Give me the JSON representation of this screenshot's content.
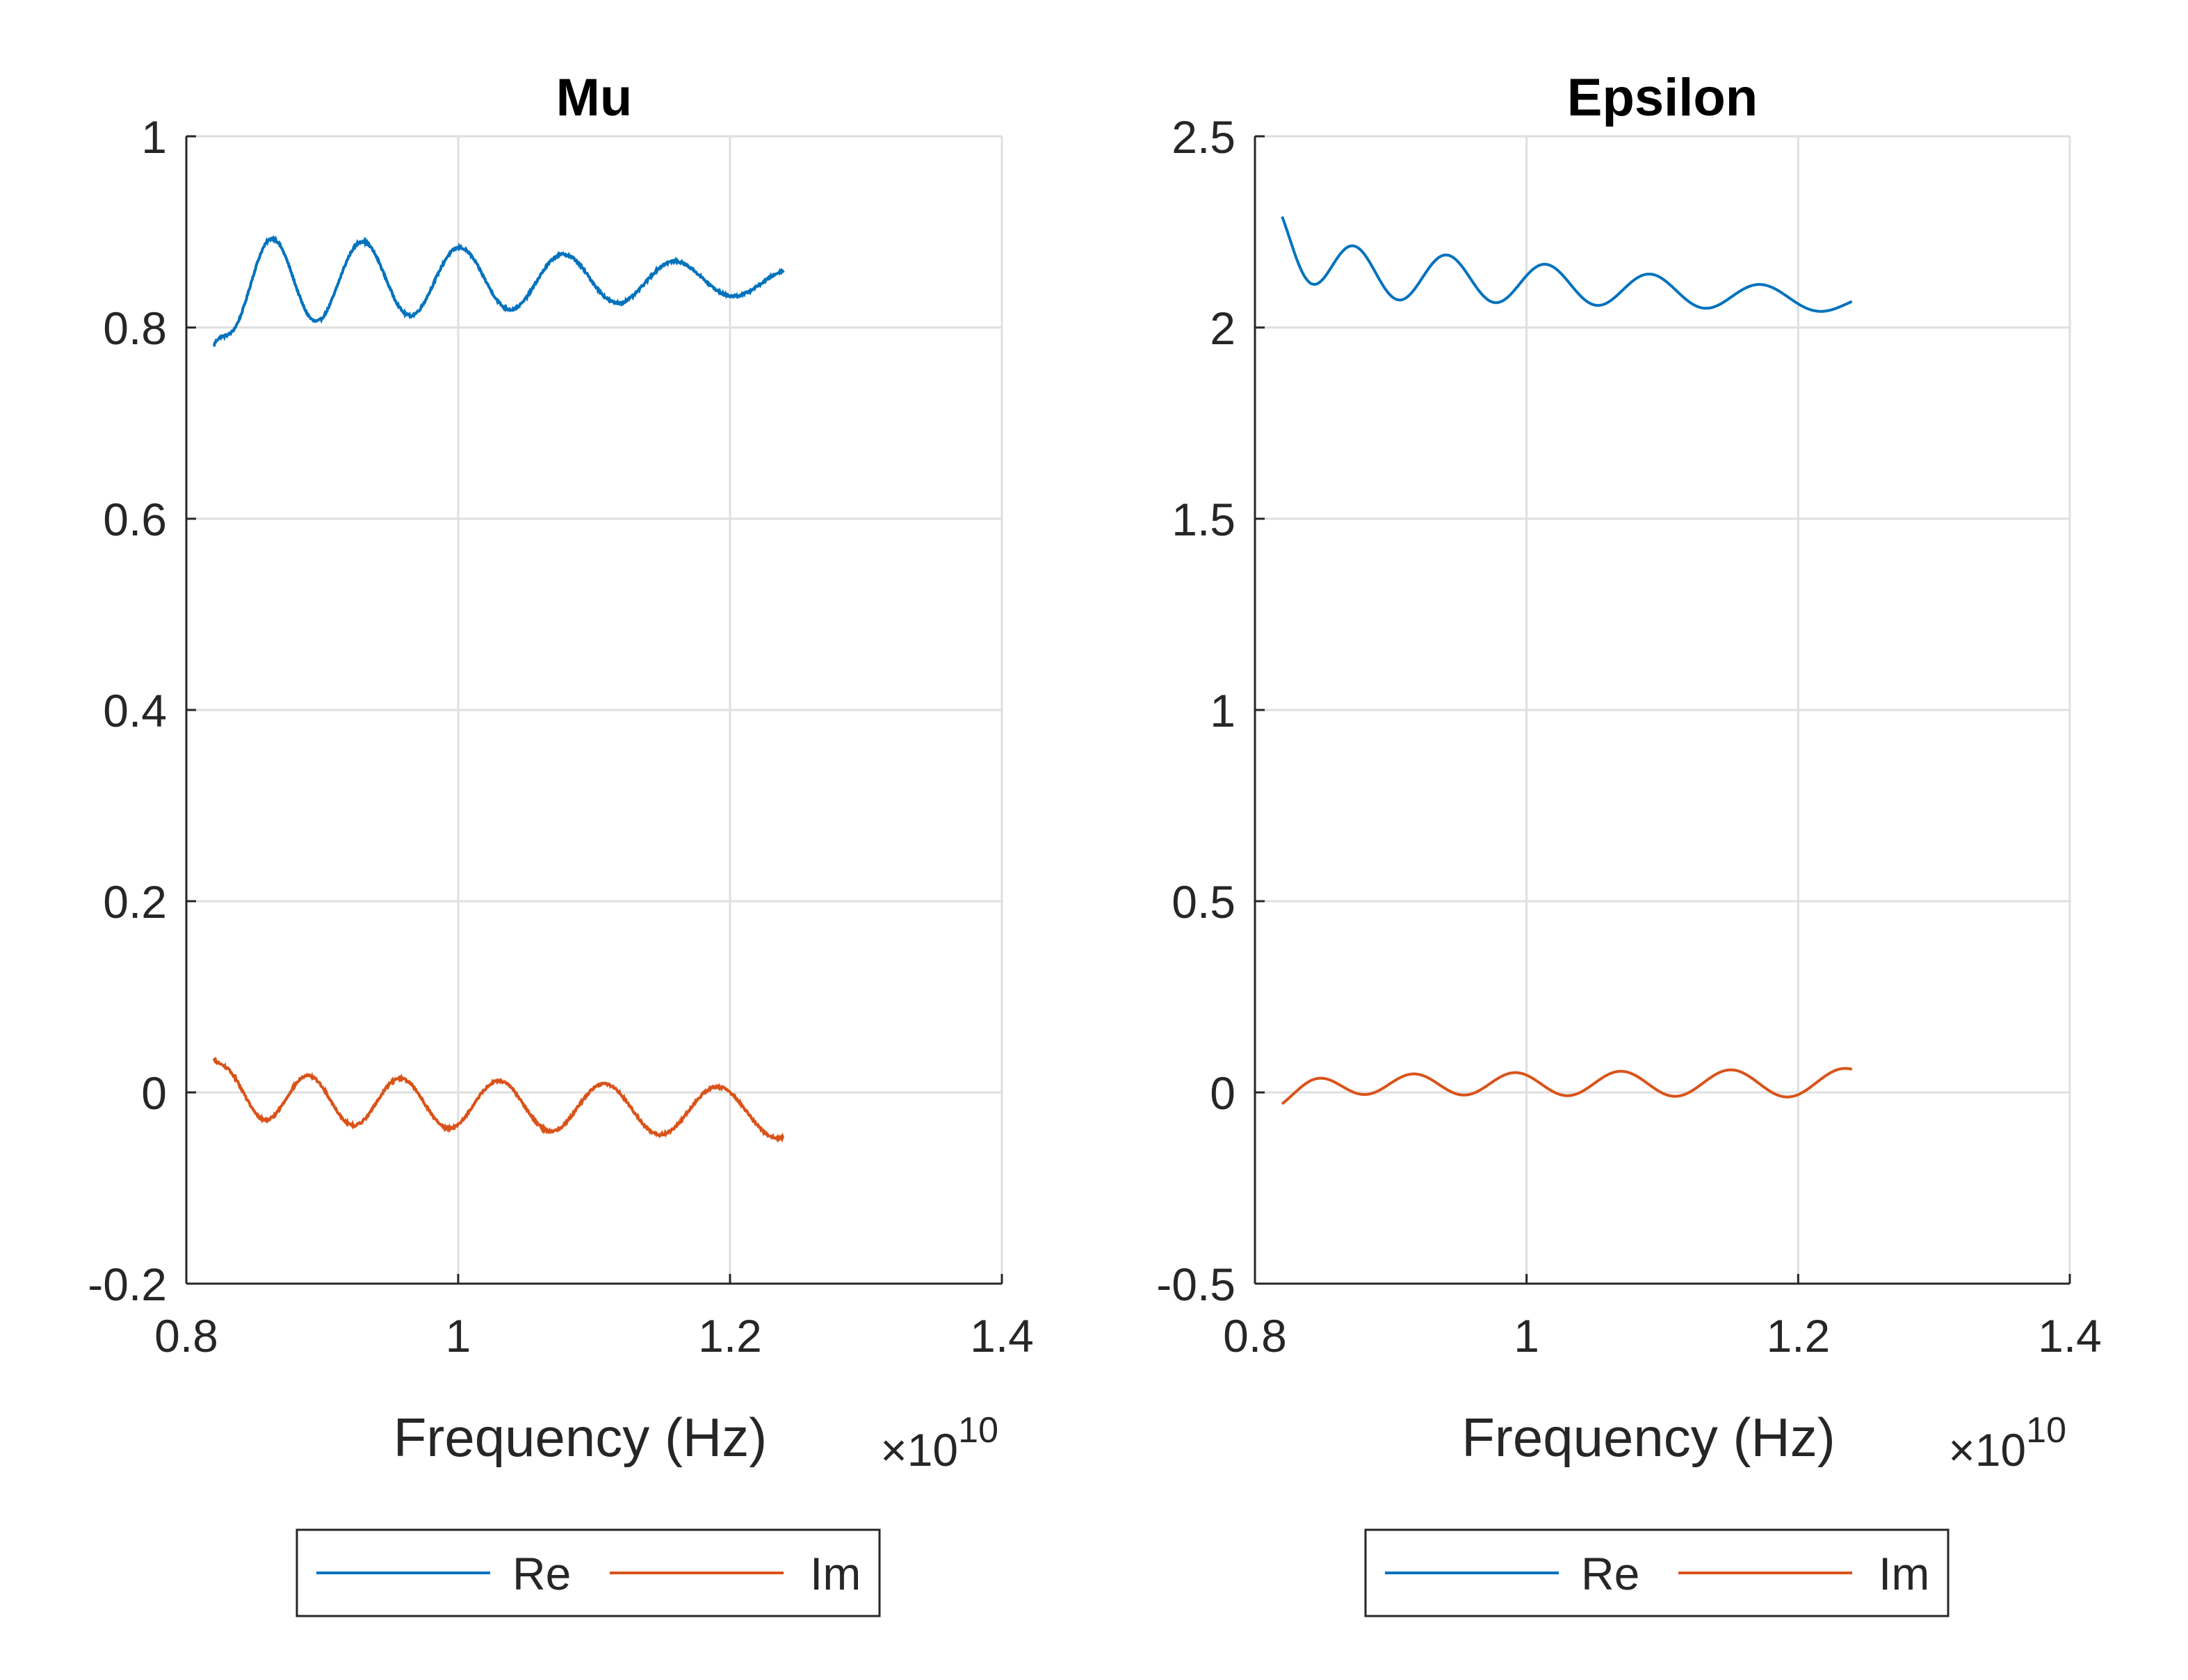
{
  "chart_data": [
    {
      "type": "line",
      "title": "Mu",
      "xlabel": "Frequency (Hz)",
      "x_exponent_label": "×10",
      "x_exponent": "10",
      "ylabel": "",
      "xlim": [
        0.8,
        1.4
      ],
      "ylim": [
        -0.2,
        1
      ],
      "x_ticks": [
        "0.8",
        "1",
        "1.2",
        "1.4"
      ],
      "y_ticks": [
        "-0.2",
        "0",
        "0.2",
        "0.4",
        "0.6",
        "0.8",
        "1"
      ],
      "grid": true,
      "legend": "bottom-outside",
      "x_range": [
        0.82,
        1.24
      ],
      "series": [
        {
          "name": "Re",
          "color": "#0072BD",
          "oscillation": {
            "start_x": 0.82,
            "start_y": 0.78,
            "phase_x": 0.8,
            "period_start": 0.0615,
            "period_end": 0.0745,
            "mean_start": 0.85,
            "mean_end": 0.849,
            "amp_start": 0.05,
            "amp_end": 0.013,
            "jitter": 0.0025
          }
        },
        {
          "name": "Im",
          "color": "#D95319",
          "oscillation": {
            "start_x": 0.82,
            "start_y": 0.035,
            "phase_x": 0.826,
            "period_start": 0.0615,
            "period_end": 0.0745,
            "mean_start": -0.005,
            "mean_end": -0.022,
            "amp_start": 0.025,
            "amp_end": 0.026,
            "jitter": 0.0025
          }
        }
      ]
    },
    {
      "type": "line",
      "title": "Epsilon",
      "xlabel": "Frequency (Hz)",
      "x_exponent_label": "×10",
      "x_exponent": "10",
      "ylabel": "",
      "xlim": [
        0.8,
        1.4
      ],
      "ylim": [
        -0.5,
        2.5
      ],
      "x_ticks": [
        "0.8",
        "1",
        "1.2",
        "1.4"
      ],
      "y_ticks": [
        "-0.5",
        "0",
        "0.5",
        "1",
        "1.5",
        "2",
        "2.5"
      ],
      "grid": true,
      "legend": "bottom-outside",
      "x_range": [
        0.82,
        1.24
      ],
      "series": [
        {
          "name": "Re",
          "color": "#0072BD",
          "oscillation": {
            "start_x": 0.82,
            "start_y": 2.29,
            "phase_x": 0.807,
            "period_start": 0.064,
            "period_end": 0.075,
            "mean_start": 2.155,
            "mean_end": 2.065,
            "amp_start": 0.075,
            "amp_end": 0.025,
            "jitter": 0.0
          }
        },
        {
          "name": "Im",
          "color": "#D95319",
          "oscillation": {
            "start_x": 0.82,
            "start_y": -0.03,
            "phase_x": 0.845,
            "period_start": 0.07,
            "period_end": 0.078,
            "mean_start": 0.02,
            "mean_end": 0.025,
            "amp_start": 0.024,
            "amp_end": 0.038,
            "jitter": 0.0
          }
        }
      ]
    }
  ]
}
